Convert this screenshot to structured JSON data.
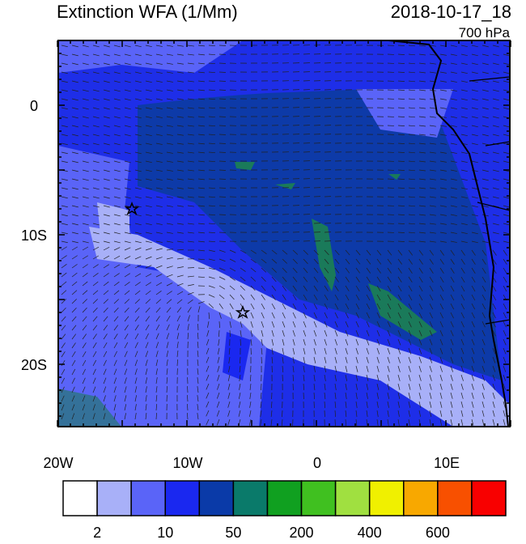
{
  "header": {
    "title": "Extinction WFA (1/Mm)",
    "date": "2018-10-17_18",
    "level": "700 hPa"
  },
  "map": {
    "lat_labels": [
      "0",
      "10S",
      "20S"
    ],
    "lon_labels": [
      "20W",
      "10W",
      "0",
      "10E"
    ]
  },
  "colorbar": {
    "colors": [
      "#ffffff",
      "#a8b0f8",
      "#5a64f8",
      "#1a28f0",
      "#0a3aa8",
      "#0a7a6a",
      "#10a020",
      "#40c020",
      "#a0e040",
      "#f0f000",
      "#f8a800",
      "#f85000",
      "#f80000"
    ],
    "labels": [
      "2",
      "10",
      "50",
      "200",
      "400",
      "600"
    ]
  }
}
